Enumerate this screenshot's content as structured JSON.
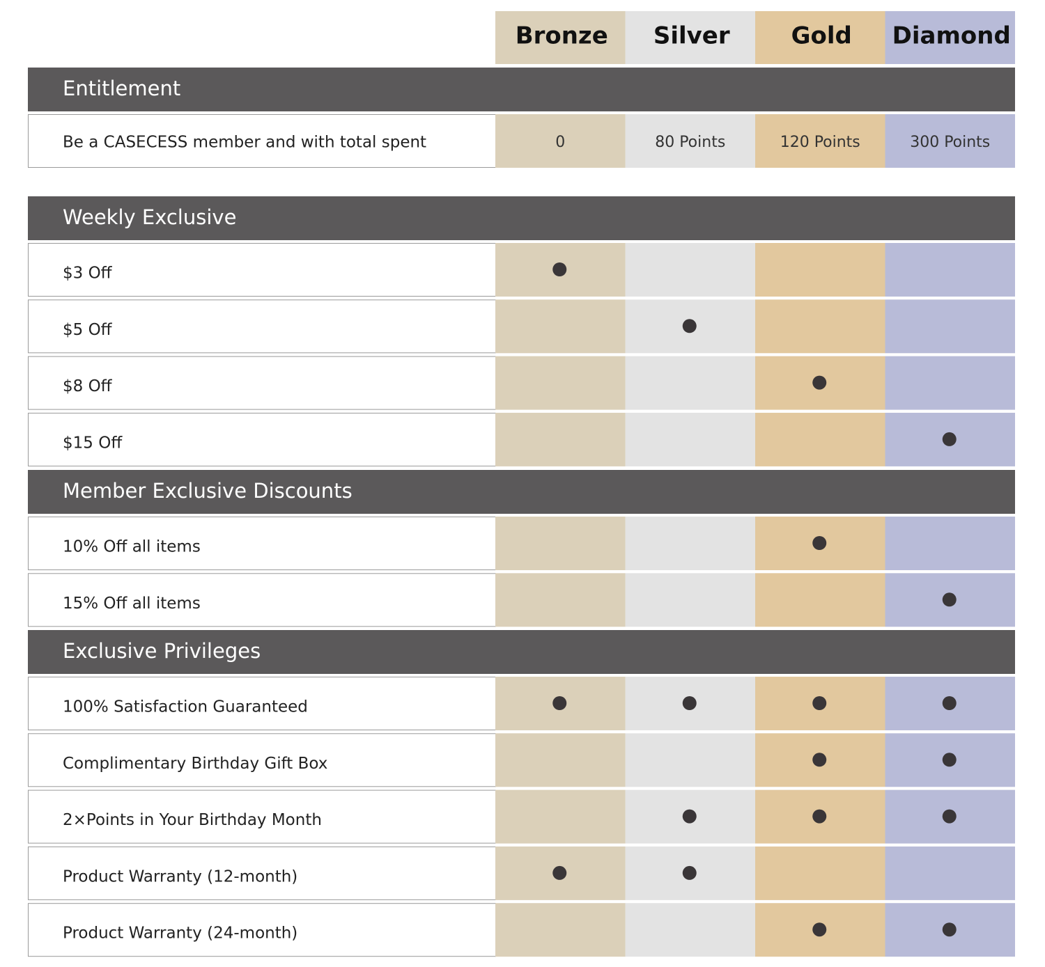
{
  "tiers": [
    "Bronze",
    "Silver",
    "Gold",
    "Diamond"
  ],
  "sections": [
    {
      "title": "Entitlement",
      "rows": [
        {
          "label": "Be a CASECESS member and with total spent",
          "cells": [
            "0",
            "80 Points",
            "120 Points",
            "300 Points"
          ]
        }
      ]
    },
    {
      "title": "Weekly Exclusive",
      "rows": [
        {
          "label": "$3 Off",
          "marks": [
            true,
            false,
            false,
            false
          ]
        },
        {
          "label": "$5 Off",
          "marks": [
            false,
            true,
            false,
            false
          ]
        },
        {
          "label": "$8 Off",
          "marks": [
            false,
            false,
            true,
            false
          ]
        },
        {
          "label": "$15 Off",
          "marks": [
            false,
            false,
            false,
            true
          ]
        }
      ]
    },
    {
      "title": "Member Exclusive Discounts",
      "rows": [
        {
          "label": "10% Off all items",
          "marks": [
            false,
            false,
            true,
            false
          ]
        },
        {
          "label": "15% Off all items",
          "marks": [
            false,
            false,
            false,
            true
          ]
        }
      ]
    },
    {
      "title": "Exclusive Privileges",
      "rows": [
        {
          "label": "100% Satisfaction Guaranteed",
          "marks": [
            true,
            true,
            true,
            true
          ]
        },
        {
          "label": "Complimentary Birthday Gift Box",
          "marks": [
            false,
            false,
            true,
            true
          ]
        },
        {
          "label": "2×Points in Your Birthday Month",
          "marks": [
            false,
            true,
            true,
            true
          ]
        },
        {
          "label": "Product Warranty (12-month)",
          "marks": [
            true,
            true,
            false,
            false
          ]
        },
        {
          "label": "Product Warranty (24-month)",
          "marks": [
            false,
            false,
            true,
            true
          ]
        }
      ]
    }
  ]
}
